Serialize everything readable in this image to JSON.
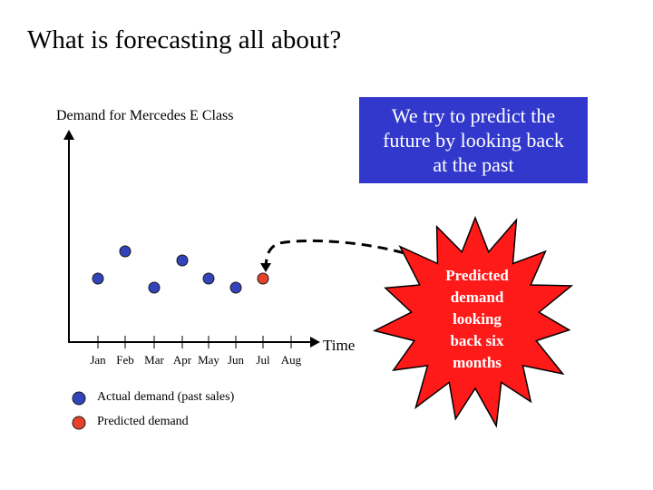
{
  "title": "What is forecasting all about?",
  "chart_title": "Demand for Mercedes E Class",
  "callout_text": [
    "We try to predict the",
    "future by looking back",
    "at the past"
  ],
  "burst_text": [
    "Predicted",
    "demand",
    "looking",
    "back six",
    "months"
  ],
  "x_axis_label": "Time",
  "months": [
    "Jan",
    "Feb",
    "Mar",
    "Apr",
    "May",
    "Jun",
    "Jul",
    "Aug"
  ],
  "legend": [
    {
      "label": "Actual demand (past sales)",
      "color": "#3344bb"
    },
    {
      "label": "Predicted demand",
      "color": "#e8402a"
    }
  ],
  "colors": {
    "actual": "#3344bb",
    "predicted": "#e8402a",
    "callout_bg": "#3338cc",
    "burst": "#ff1a1a"
  },
  "chart_data": {
    "type": "scatter",
    "categories": [
      "Jan",
      "Feb",
      "Mar",
      "Apr",
      "May",
      "Jun",
      "Jul",
      "Aug"
    ],
    "series": [
      {
        "name": "Actual demand (past sales)",
        "points": [
          {
            "x": "Jan",
            "y": 4
          },
          {
            "x": "Feb",
            "y": 7
          },
          {
            "x": "Mar",
            "y": 3
          },
          {
            "x": "Apr",
            "y": 6
          },
          {
            "x": "May",
            "y": 4
          },
          {
            "x": "Jun",
            "y": 3
          }
        ]
      },
      {
        "name": "Predicted demand",
        "points": [
          {
            "x": "Jul",
            "y": 4
          }
        ]
      }
    ]
  }
}
